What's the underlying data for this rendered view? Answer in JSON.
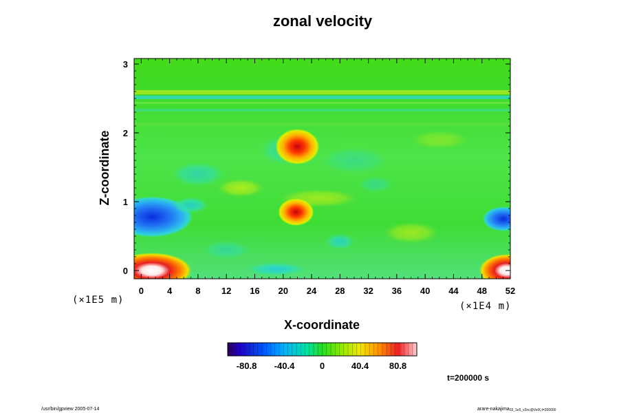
{
  "chart_data": {
    "type": "heatmap",
    "title": "zonal velocity",
    "xlabel": "X-coordinate",
    "ylabel": "Z-coordinate",
    "x_scale_label": "(×1E4 m)",
    "y_scale_label": "(×1E5 m)",
    "xlim": [
      -1,
      52
    ],
    "ylim": [
      -0.12,
      3.08
    ],
    "x_ticks": [
      "0",
      "4",
      "8",
      "12",
      "16",
      "20",
      "24",
      "28",
      "32",
      "36",
      "40",
      "44",
      "48",
      "52"
    ],
    "y_ticks": [
      "0",
      "1",
      "2",
      "3"
    ],
    "colorbar": {
      "min": -101,
      "max": 101,
      "ticks": [
        "-80.8",
        "-40.4",
        "0",
        "40.4",
        "80.8"
      ],
      "tick_values": [
        -80.8,
        -40.4,
        0,
        40.4,
        80.8
      ]
    },
    "features": [
      {
        "kind": "positive",
        "x": 2,
        "z": 0.0,
        "value": 101
      },
      {
        "kind": "positive",
        "x": 51,
        "z": 0.0,
        "value": 101
      },
      {
        "kind": "negative",
        "x": 3,
        "z": 0.8,
        "value": -60
      },
      {
        "kind": "negative",
        "x": 50,
        "z": 0.75,
        "value": -55
      },
      {
        "kind": "positive",
        "x": 22,
        "z": 1.8,
        "value": 85
      },
      {
        "kind": "positive",
        "x": 22,
        "z": 0.85,
        "value": 85
      },
      {
        "kind": "negative",
        "x": 19,
        "z": 0.0,
        "value": -25
      }
    ],
    "grid": false
  },
  "footer": {
    "time_label": "t=200000 s",
    "left_note": "/usr/bin/gpview 2005-07-14",
    "right_note": "arare-nakajima",
    "right_note_small": "03_1e5_v2nc@VelX,t=200000"
  }
}
